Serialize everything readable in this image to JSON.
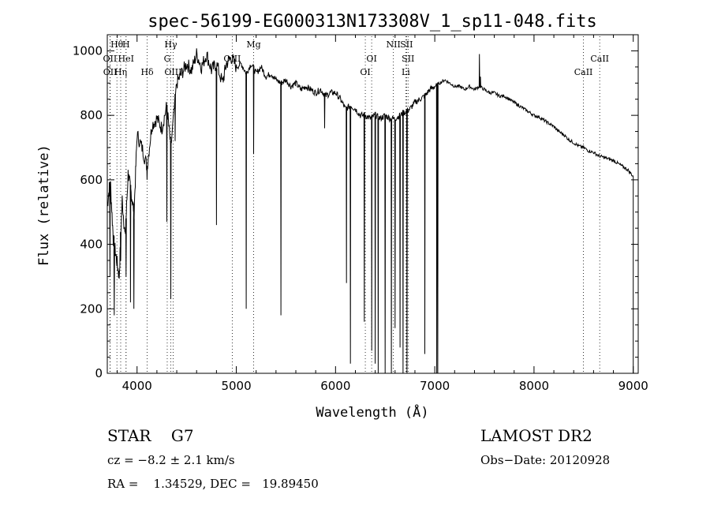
{
  "chart_data": {
    "type": "line",
    "title": "spec-56199-EG000313N173308V_1_sp11-048.fits",
    "xlabel": "Wavelength (Å)",
    "ylabel": "Flux (relative)",
    "xlim": [
      3700,
      9050
    ],
    "ylim": [
      0,
      1050
    ],
    "x_ticks": [
      4000,
      5000,
      6000,
      7000,
      8000,
      9000
    ],
    "y_ticks": [
      0,
      200,
      400,
      600,
      800,
      1000
    ],
    "grid": false,
    "spectrum": [
      [
        3700,
        520
      ],
      [
        3730,
        600
      ],
      [
        3760,
        420
      ],
      [
        3790,
        360
      ],
      [
        3820,
        300
      ],
      [
        3850,
        540
      ],
      [
        3880,
        420
      ],
      [
        3910,
        620
      ],
      [
        3940,
        560
      ],
      [
        3970,
        500
      ],
      [
        4000,
        740
      ],
      [
        4050,
        700
      ],
      [
        4101,
        640
      ],
      [
        4150,
        770
      ],
      [
        4200,
        790
      ],
      [
        4250,
        760
      ],
      [
        4300,
        830
      ],
      [
        4340,
        700
      ],
      [
        4400,
        900
      ],
      [
        4450,
        930
      ],
      [
        4500,
        960
      ],
      [
        4550,
        940
      ],
      [
        4600,
        990
      ],
      [
        4650,
        950
      ],
      [
        4700,
        990
      ],
      [
        4750,
        940
      ],
      [
        4800,
        960
      ],
      [
        4861,
        900
      ],
      [
        4900,
        960
      ],
      [
        4950,
        980
      ],
      [
        5000,
        950
      ],
      [
        5050,
        960
      ],
      [
        5100,
        930
      ],
      [
        5150,
        960
      ],
      [
        5200,
        930
      ],
      [
        5250,
        950
      ],
      [
        5300,
        920
      ],
      [
        5350,
        930
      ],
      [
        5400,
        910
      ],
      [
        5450,
        900
      ],
      [
        5500,
        910
      ],
      [
        5550,
        890
      ],
      [
        5600,
        900
      ],
      [
        5650,
        880
      ],
      [
        5700,
        890
      ],
      [
        5750,
        880
      ],
      [
        5800,
        870
      ],
      [
        5850,
        880
      ],
      [
        5900,
        860
      ],
      [
        5950,
        870
      ],
      [
        6000,
        870
      ],
      [
        6050,
        850
      ],
      [
        6100,
        820
      ],
      [
        6150,
        830
      ],
      [
        6200,
        820
      ],
      [
        6250,
        800
      ],
      [
        6300,
        800
      ],
      [
        6350,
        790
      ],
      [
        6400,
        800
      ],
      [
        6450,
        790
      ],
      [
        6500,
        800
      ],
      [
        6550,
        790
      ],
      [
        6600,
        790
      ],
      [
        6650,
        800
      ],
      [
        6700,
        810
      ],
      [
        6750,
        820
      ],
      [
        6800,
        840
      ],
      [
        6850,
        850
      ],
      [
        6900,
        860
      ],
      [
        6950,
        880
      ],
      [
        7000,
        890
      ],
      [
        7050,
        900
      ],
      [
        7100,
        910
      ],
      [
        7150,
        900
      ],
      [
        7200,
        890
      ],
      [
        7250,
        890
      ],
      [
        7300,
        880
      ],
      [
        7350,
        890
      ],
      [
        7400,
        880
      ],
      [
        7450,
        890
      ],
      [
        7500,
        880
      ],
      [
        7550,
        870
      ],
      [
        7600,
        870
      ],
      [
        7650,
        860
      ],
      [
        7700,
        860
      ],
      [
        7750,
        850
      ],
      [
        7800,
        840
      ],
      [
        7850,
        830
      ],
      [
        7900,
        820
      ],
      [
        7950,
        810
      ],
      [
        8000,
        800
      ],
      [
        8050,
        795
      ],
      [
        8100,
        785
      ],
      [
        8150,
        775
      ],
      [
        8200,
        765
      ],
      [
        8250,
        750
      ],
      [
        8300,
        740
      ],
      [
        8350,
        725
      ],
      [
        8400,
        715
      ],
      [
        8450,
        705
      ],
      [
        8500,
        700
      ],
      [
        8550,
        690
      ],
      [
        8600,
        685
      ],
      [
        8650,
        675
      ],
      [
        8700,
        670
      ],
      [
        8750,
        665
      ],
      [
        8800,
        660
      ],
      [
        8850,
        650
      ],
      [
        8900,
        640
      ],
      [
        8950,
        630
      ],
      [
        9000,
        610
      ]
    ],
    "absorption_lines": [
      [
        3727,
        300
      ],
      [
        3770,
        180
      ],
      [
        3835,
        350
      ],
      [
        3889,
        300
      ],
      [
        3934,
        220
      ],
      [
        3968,
        200
      ],
      [
        4101,
        600
      ],
      [
        4300,
        470
      ],
      [
        4340,
        230
      ],
      [
        4384,
        720
      ],
      [
        4800,
        460
      ],
      [
        5100,
        200
      ],
      [
        5175,
        680
      ],
      [
        5450,
        180
      ],
      [
        5890,
        760
      ],
      [
        6110,
        280
      ],
      [
        6150,
        30
      ],
      [
        6290,
        160
      ],
      [
        6365,
        70
      ],
      [
        6400,
        30
      ],
      [
        6430,
        0
      ],
      [
        6500,
        0
      ],
      [
        6563,
        0
      ],
      [
        6600,
        140
      ],
      [
        6650,
        80
      ],
      [
        6680,
        0
      ],
      [
        6720,
        0
      ],
      [
        6900,
        60
      ],
      [
        7020,
        0
      ],
      [
        7030,
        0
      ]
    ],
    "emission_features": [
      [
        7450,
        990
      ],
      [
        7460,
        920
      ]
    ],
    "line_markers": [
      {
        "label": "Hθ",
        "x": 3797,
        "row": 0,
        "color": "#000000"
      },
      {
        "label": "H",
        "x": 3889,
        "row": 0,
        "color": "#000000"
      },
      {
        "label": "Hγ",
        "x": 4340,
        "row": 0,
        "color": "#000000"
      },
      {
        "label": "Mg",
        "x": 5175,
        "row": 0,
        "color": "#000000"
      },
      {
        "label": "NII",
        "x": 6583,
        "row": 0,
        "color": "#000000"
      },
      {
        "label": "SII",
        "x": 6716,
        "row": 0,
        "color": "#000000"
      },
      {
        "label": "OII",
        "x": 3727,
        "row": 1,
        "color": "#000000"
      },
      {
        "label": "HeI",
        "x": 3889,
        "row": 1,
        "color": "#000000"
      },
      {
        "label": "G",
        "x": 4304,
        "row": 1,
        "color": "#000000"
      },
      {
        "label": "OIII",
        "x": 4959,
        "row": 1,
        "color": "#000000"
      },
      {
        "label": "OI",
        "x": 6364,
        "row": 1,
        "color": "#000000"
      },
      {
        "label": "SII",
        "x": 6731,
        "row": 1,
        "color": "#000000"
      },
      {
        "label": "CaII",
        "x": 8662,
        "row": 1,
        "color": "#000000"
      },
      {
        "label": "OII",
        "x": 3729,
        "row": 2,
        "color": "#000000"
      },
      {
        "label": "Hη",
        "x": 3835,
        "row": 2,
        "color": "#000000"
      },
      {
        "label": "Hδ",
        "x": 4102,
        "row": 2,
        "color": "#000000"
      },
      {
        "label": "OIII",
        "x": 4363,
        "row": 2,
        "color": "#000000"
      },
      {
        "label": "OI",
        "x": 6300,
        "row": 2,
        "color": "#000000"
      },
      {
        "label": "Li",
        "x": 6708,
        "row": 2,
        "color": "#000000"
      },
      {
        "label": "CaII",
        "x": 8498,
        "row": 2,
        "color": "#000000"
      }
    ]
  },
  "info": {
    "class": "STAR    G7",
    "survey": "LAMOST DR2",
    "cz": "cz = −8.2 ± 2.1 km/s",
    "obsdate": "Obs−Date: 20120928",
    "coords": "RA =    1.34529, DEC =   19.89450"
  }
}
